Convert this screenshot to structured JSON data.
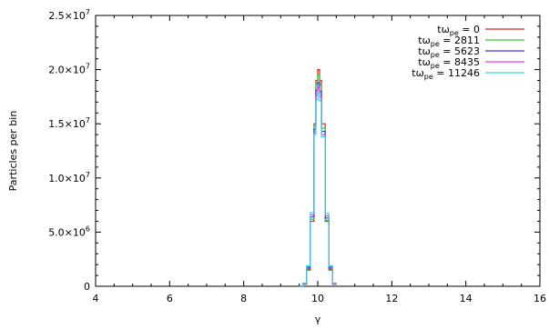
{
  "chart_data": {
    "type": "line",
    "xlabel": "γ",
    "ylabel": "Particles per bin",
    "xlim": [
      4,
      16
    ],
    "ylim": [
      0,
      25000000
    ],
    "x_ticks": [
      4,
      6,
      8,
      10,
      12,
      14,
      16
    ],
    "y_ticks": [
      {
        "value": 0,
        "mantissa": "0",
        "exponent": ""
      },
      {
        "value": 5000000,
        "mantissa": "5.0×10",
        "exponent": "6"
      },
      {
        "value": 10000000,
        "mantissa": "1.0×10",
        "exponent": "7"
      },
      {
        "value": 15000000,
        "mantissa": "1.5×10",
        "exponent": "7"
      },
      {
        "value": 20000000,
        "mantissa": "2.0×10",
        "exponent": "7"
      },
      {
        "value": 25000000,
        "mantissa": "2.5×10",
        "exponent": "7"
      }
    ],
    "grid": false,
    "legend_position": "top-right",
    "series": [
      {
        "name_prefix": "tω",
        "name_sub": "pe",
        "name_suffix": " = 0",
        "color": "#e0201b",
        "peak": 20000000,
        "x": [
          9.5,
          9.6,
          9.7,
          9.8,
          9.9,
          9.95,
          10.0,
          10.05,
          10.1,
          10.2,
          10.3,
          10.4,
          10.5
        ],
        "y": [
          0,
          200000,
          1500000,
          6000000,
          15000000,
          19000000,
          20000000,
          19000000,
          15000000,
          6000000,
          1500000,
          200000,
          0
        ]
      },
      {
        "name_prefix": "tω",
        "name_sub": "pe",
        "name_suffix": " = 2811",
        "color": "#2fc52a",
        "peak": 19500000,
        "x": [
          9.5,
          9.6,
          9.7,
          9.8,
          9.9,
          9.95,
          10.0,
          10.05,
          10.1,
          10.2,
          10.3,
          10.4,
          10.5
        ],
        "y": [
          0,
          200000,
          1600000,
          6200000,
          14800000,
          18700000,
          19500000,
          18600000,
          14600000,
          6100000,
          1600000,
          200000,
          0
        ]
      },
      {
        "name_prefix": "tω",
        "name_sub": "pe",
        "name_suffix": " = 5623",
        "color": "#3a3adf",
        "peak": 18800000,
        "x": [
          9.5,
          9.6,
          9.7,
          9.8,
          9.9,
          9.95,
          10.0,
          10.05,
          10.1,
          10.2,
          10.3,
          10.4,
          10.5
        ],
        "y": [
          0,
          250000,
          1700000,
          6400000,
          14500000,
          18100000,
          18800000,
          18000000,
          14300000,
          6300000,
          1700000,
          250000,
          0
        ]
      },
      {
        "name_prefix": "tω",
        "name_sub": "pe",
        "name_suffix": " = 8435",
        "color": "#e040e0",
        "peak": 18300000,
        "x": [
          9.5,
          9.6,
          9.7,
          9.8,
          9.9,
          9.95,
          10.0,
          10.05,
          10.1,
          10.2,
          10.3,
          10.4,
          10.5
        ],
        "y": [
          0,
          250000,
          1800000,
          6600000,
          14200000,
          17600000,
          18300000,
          17500000,
          14000000,
          6500000,
          1800000,
          250000,
          0
        ]
      },
      {
        "name_prefix": "tω",
        "name_sub": "pe",
        "name_suffix": " = 11246",
        "color": "#33d6e0",
        "peak": 17800000,
        "x": [
          9.5,
          9.6,
          9.7,
          9.8,
          9.9,
          9.95,
          10.0,
          10.05,
          10.1,
          10.2,
          10.3,
          10.4,
          10.5
        ],
        "y": [
          0,
          300000,
          1900000,
          6800000,
          14000000,
          17200000,
          17800000,
          17100000,
          13800000,
          6700000,
          1900000,
          300000,
          0
        ]
      }
    ]
  }
}
